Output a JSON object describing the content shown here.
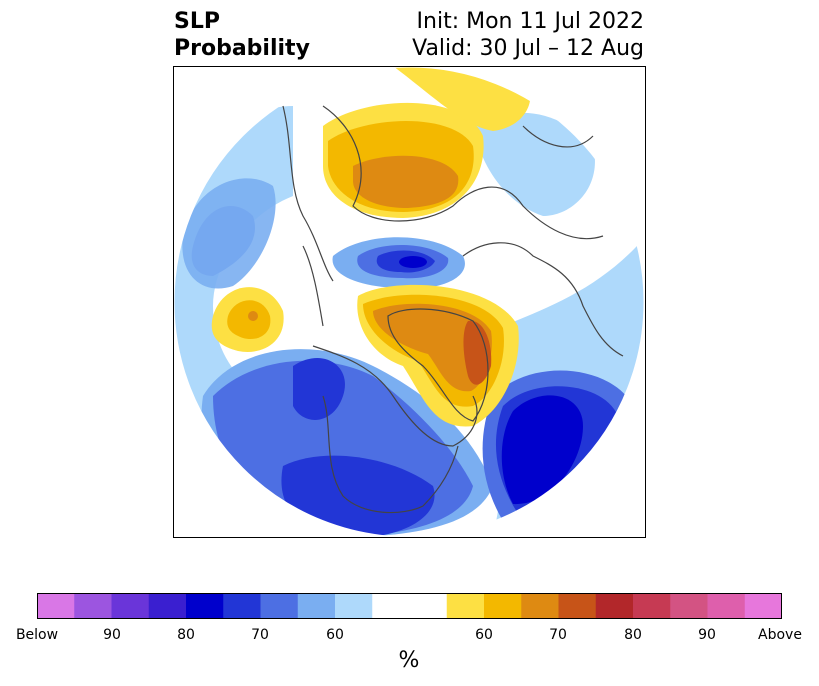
{
  "title": {
    "left_line1": "SLP",
    "left_line2": "Probability",
    "right_line1": "Init: Mon 11 Jul 2022",
    "right_line2": "Valid: 30 Jul – 12 Aug"
  },
  "colorbar": {
    "colors": [
      "#d977e6",
      "#9c55e0",
      "#6a35d9",
      "#3a1fd0",
      "#0000cc",
      "#2236d6",
      "#4d6fe3",
      "#7aaef1",
      "#aed9fb",
      "#ffffff",
      "#ffffff",
      "#fde043",
      "#f3b800",
      "#de8a12",
      "#c75418",
      "#b2272a",
      "#c63a53",
      "#d35383",
      "#de5fac",
      "#e777dc"
    ],
    "tick_labels": [
      "Below",
      "90",
      "80",
      "70",
      "60",
      "60",
      "70",
      "80",
      "90",
      "Above"
    ],
    "unit_label": "%"
  },
  "map": {
    "projection": "north-polar-stereographic",
    "palette": {
      "below_90": "#0000cc",
      "below_80": "#2236d6",
      "below_70": "#4d6fe3",
      "below_60": "#7aaef1",
      "below_50": "#aed9fb",
      "neutral": "#ffffff",
      "above_50": "#fde043",
      "above_60": "#f3b800",
      "above_70": "#de8a12",
      "above_80": "#c75418"
    },
    "land_outline_color": "#444444"
  }
}
